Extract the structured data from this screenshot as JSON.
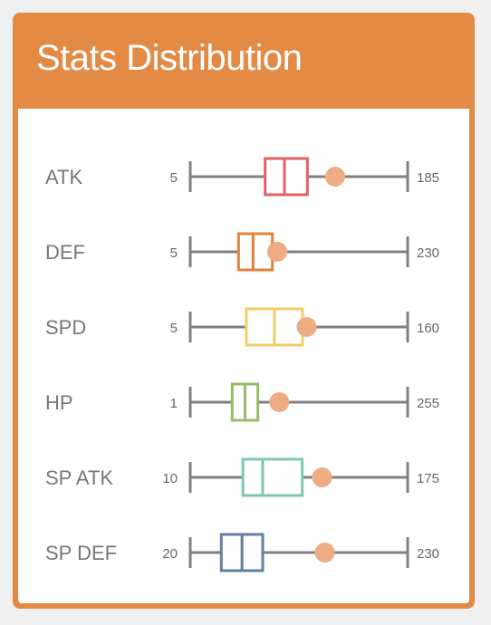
{
  "header": {
    "title": "Stats Distribution"
  },
  "chart_data": {
    "type": "boxplot",
    "title": "Stats Distribution",
    "mean_color": "#eeac83",
    "axis_color": "#808080",
    "series": [
      {
        "name": "ATK",
        "min": 5,
        "max": 185,
        "q1": 67,
        "median": 83,
        "q3": 102,
        "mean": 125,
        "color": "#e06266"
      },
      {
        "name": "DEF",
        "min": 5,
        "max": 230,
        "q1": 55,
        "median": 70,
        "q3": 90,
        "mean": 95,
        "color": "#e0813c"
      },
      {
        "name": "SPD",
        "min": 5,
        "max": 160,
        "q1": 45,
        "median": 65,
        "q3": 85,
        "mean": 88,
        "color": "#efcf6a"
      },
      {
        "name": "HP",
        "min": 1,
        "max": 255,
        "q1": 50,
        "median": 65,
        "q3": 80,
        "mean": 105,
        "color": "#95bd69"
      },
      {
        "name": "SP ATK",
        "min": 10,
        "max": 175,
        "q1": 50,
        "median": 65,
        "q3": 95,
        "mean": 110,
        "color": "#7dc9b0"
      },
      {
        "name": "SP DEF",
        "min": 20,
        "max": 230,
        "q1": 50,
        "median": 70,
        "q3": 90,
        "mean": 150,
        "color": "#64809e"
      }
    ]
  }
}
